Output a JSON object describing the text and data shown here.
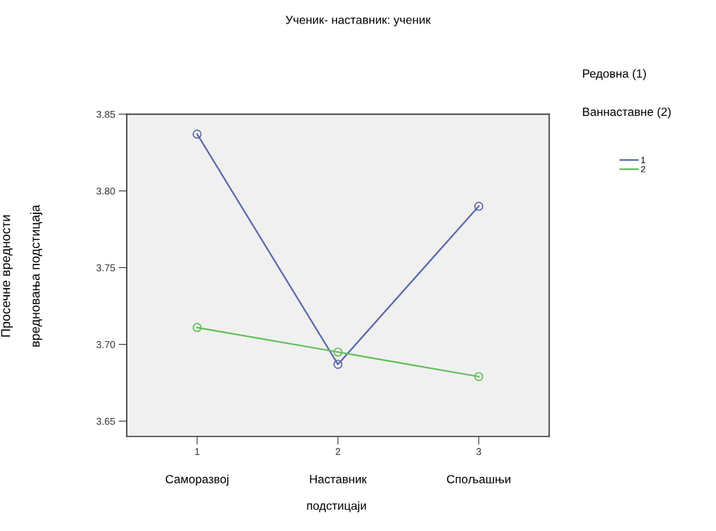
{
  "chart_data": {
    "type": "line",
    "title": "Ученик- наставник: ученик",
    "xlabel": "подстицаји",
    "ylabel": "Просечне вредности\n\nвредновања подстицаја",
    "legend_title": "Редовна (1)\n\n\nВаннаставне (2)",
    "x": [
      1,
      2,
      3
    ],
    "series": [
      {
        "name": "1",
        "color": "#5b68a8",
        "values": [
          3.837,
          3.687,
          3.79
        ]
      },
      {
        "name": "2",
        "color": "#5dbf55",
        "values": [
          3.711,
          3.695,
          3.679
        ]
      }
    ],
    "annotations": [
      "Саморазвој",
      "Наставник",
      "Спољашњи"
    ],
    "xlim": [
      0.5,
      3.5
    ],
    "xticks": [
      1,
      2,
      3
    ],
    "ylim": [
      3.64,
      3.85
    ],
    "yticks": [
      3.65,
      {
        "value": 3.7,
        "label": "3.70"
      },
      3.75,
      {
        "value": 3.8,
        "label": "3.80"
      },
      3.85
    ],
    "marker": "circle",
    "grid": false,
    "legend": "top right"
  }
}
